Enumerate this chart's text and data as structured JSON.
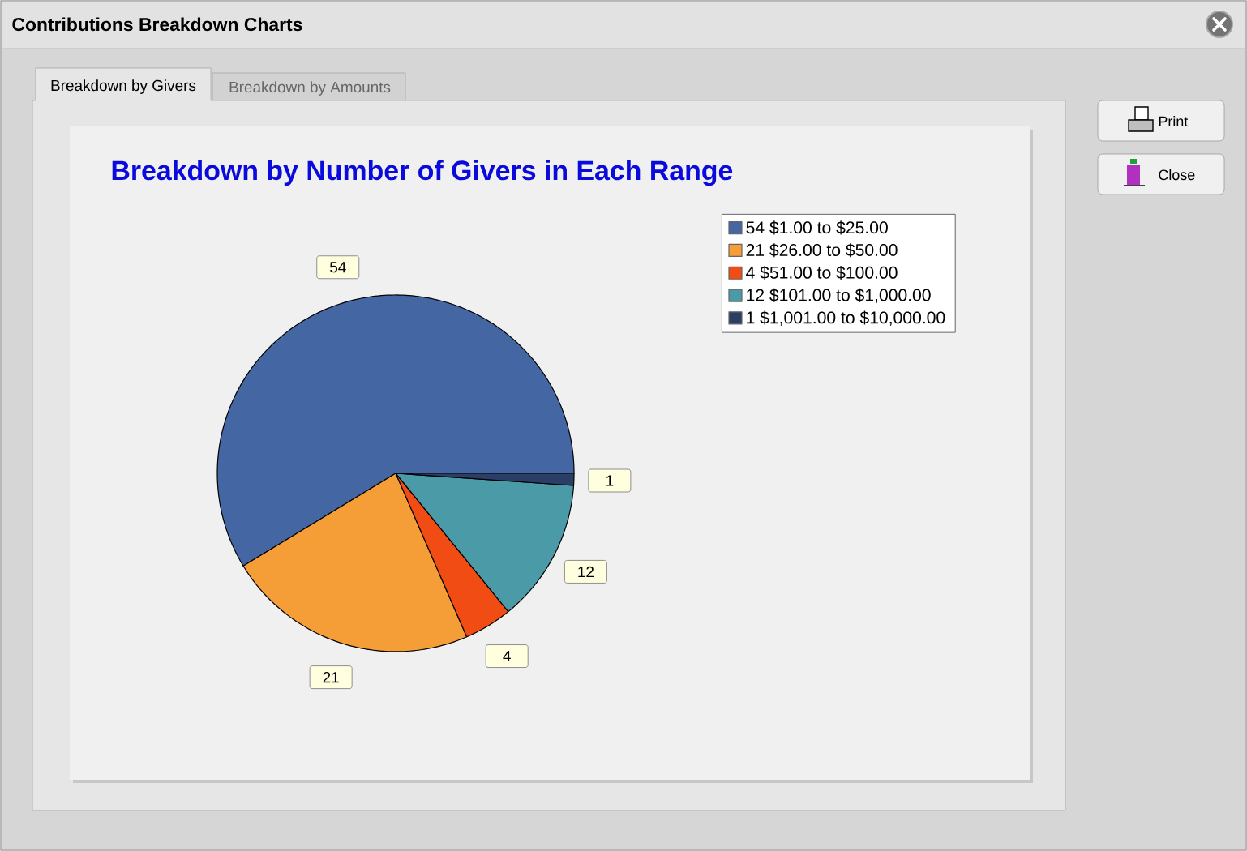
{
  "chart_data": {
    "type": "pie",
    "title": "Breakdown by Number of Givers in Each Range",
    "categories": [
      "54 $1.00 to $25.00",
      "21 $26.00 to $50.00",
      "4 $51.00 to $100.00",
      "12 $101.00 to $1,000.00",
      "1 $1,001.00 to $10,000.00"
    ],
    "values": [
      54,
      21,
      4,
      12,
      1
    ],
    "colors": [
      "#4466a3",
      "#f59d36",
      "#f04c14",
      "#4b9aa8",
      "#2a3e66"
    ],
    "data_labels": true,
    "legend": "top right",
    "annotations": [
      "Contributions Breakdown Charts",
      "Breakdown by Givers",
      "Breakdown by Amounts",
      "Print",
      "Close"
    ]
  }
}
